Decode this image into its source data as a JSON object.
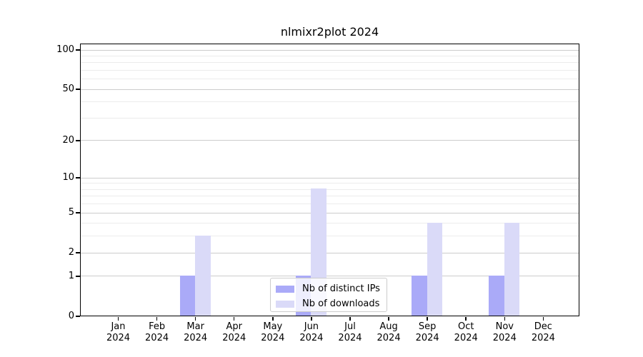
{
  "title": "nlmixr2plot 2024",
  "colors": {
    "distinct_ips": "#aaaaf8",
    "downloads": "#dadaf8",
    "grid_major": "#cccccc",
    "grid_minor": "#ececec",
    "axis": "#000000",
    "background": "#ffffff"
  },
  "y_axis": {
    "scale": "log1p",
    "tick_values": [
      0,
      1,
      2,
      5,
      10,
      20,
      50,
      100
    ],
    "tick_labels": [
      "0",
      "1",
      "2",
      "5",
      "10",
      "20",
      "50",
      "100"
    ],
    "minor_grid_values": [
      3,
      4,
      6,
      7,
      8,
      9,
      30,
      40,
      60,
      70,
      80,
      90
    ]
  },
  "x_axis": {
    "months": [
      "Jan",
      "Feb",
      "Mar",
      "Apr",
      "May",
      "Jun",
      "Jul",
      "Aug",
      "Sep",
      "Oct",
      "Nov",
      "Dec"
    ],
    "year": "2024"
  },
  "legend": {
    "items": [
      {
        "label": "Nb of distinct IPs",
        "color_key": "distinct_ips"
      },
      {
        "label": "Nb of downloads",
        "color_key": "downloads"
      }
    ]
  },
  "chart_data": {
    "type": "bar",
    "title": "nlmixr2plot 2024",
    "categories": [
      "Jan 2024",
      "Feb 2024",
      "Mar 2024",
      "Apr 2024",
      "May 2024",
      "Jun 2024",
      "Jul 2024",
      "Aug 2024",
      "Sep 2024",
      "Oct 2024",
      "Nov 2024",
      "Dec 2024"
    ],
    "series": [
      {
        "name": "Nb of distinct IPs",
        "color_key": "distinct_ips",
        "values": [
          0,
          0,
          1,
          0,
          0,
          1,
          0,
          0,
          1,
          0,
          1,
          0
        ]
      },
      {
        "name": "Nb of downloads",
        "color_key": "downloads",
        "values": [
          0,
          0,
          3,
          0,
          0,
          8,
          0,
          0,
          4,
          0,
          4,
          0
        ]
      }
    ],
    "yscale": "log1p",
    "ytick_values": [
      0,
      1,
      2,
      5,
      10,
      20,
      50,
      100
    ],
    "ylim": [
      0,
      112
    ],
    "grid": true,
    "legend_position": "lower center"
  }
}
